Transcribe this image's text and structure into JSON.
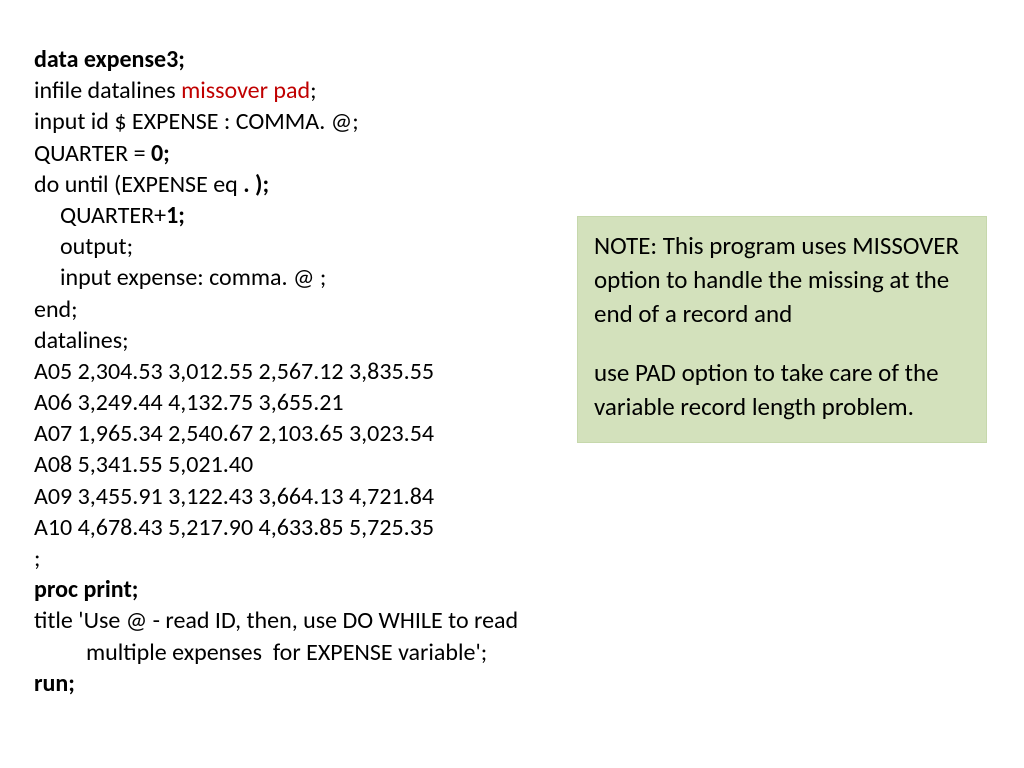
{
  "code": {
    "l1": "data expense3;",
    "l2a": "infile datalines ",
    "l2b": "missover pad",
    "l2c": ";",
    "l3": "input id $ EXPENSE : COMMA. @;",
    "l4a": "QUARTER = ",
    "l4b": "0;",
    "l5a": "do until (EXPENSE eq ",
    "l5b": ". );",
    "l6a": "QUARTER+",
    "l6b": "1;",
    "l7": "output;",
    "l8": "input expense: comma. @ ;",
    "l9": "end;",
    "l10": "datalines;",
    "l11": "A05 2,304.53 3,012.55 2,567.12 3,835.55",
    "l12": "A06 3,249.44 4,132.75 3,655.21",
    "l13": "A07 1,965.34 2,540.67 2,103.65 3,023.54",
    "l14": "A08 5,341.55 5,021.40",
    "l15": "A09 3,455.91 3,122.43 3,664.13 4,721.84",
    "l16": "A10 4,678.43 5,217.90 4,633.85 5,725.35",
    "l17": ";",
    "l18": "proc print;",
    "l19": "title 'Use @ - read ID, then, use DO WHILE to read multiple expenses  for EXPENSE variable';",
    "l20": "run;"
  },
  "note": {
    "p1": "NOTE: This program uses MISSOVER option to handle the missing at the end of a record and",
    "p2": "use PAD option to take care of the variable record length problem."
  },
  "colors": {
    "red": "#c00000",
    "noteBg": "#d3e1bc",
    "text": "#000000",
    "bg": "#ffffff"
  }
}
